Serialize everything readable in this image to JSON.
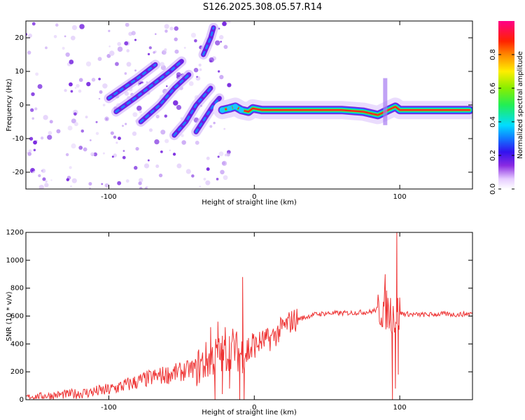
{
  "title": "S126.2025.308.05.57.R14",
  "colors": {
    "snr_line": "#ee3333",
    "axis": "#000000",
    "background": "#ffffff"
  },
  "chart_data": [
    {
      "type": "heatmap",
      "name": "spectrogram",
      "xlabel": "Height of straight line (km)",
      "ylabel": "Frequency (Hz)",
      "xlim": [
        -157,
        150
      ],
      "ylim": [
        -25,
        25
      ],
      "x_ticks": [
        -100,
        0,
        100
      ],
      "x_tick_labels": [
        "-100",
        "0",
        "100"
      ],
      "y_ticks": [
        20,
        10,
        0,
        -10,
        -20
      ],
      "y_tick_labels": [
        "20",
        "10",
        "0",
        "-10",
        "-20"
      ],
      "colorbar": {
        "label": "Normalized spectral amplitude",
        "range": [
          0,
          1
        ],
        "ticks": [
          0.0,
          0.2,
          0.4,
          0.6,
          0.8
        ],
        "tick_labels": [
          "0.0",
          "0.2",
          "0.4",
          "0.6",
          "0.8"
        ]
      },
      "features": [
        {
          "name": "carrier",
          "kind": "track",
          "points": [
            [
              -22,
              -1.5
            ],
            [
              -17,
              -1
            ],
            [
              -13,
              -0.5
            ],
            [
              -9,
              -1.5
            ],
            [
              -4,
              -2
            ],
            [
              -1,
              -1
            ],
            [
              5,
              -1.5
            ],
            [
              20,
              -1.5
            ],
            [
              60,
              -1.5
            ],
            [
              75,
              -2
            ],
            [
              85,
              -3
            ],
            [
              92,
              -1.5
            ],
            [
              97,
              -0.5
            ],
            [
              100,
              -1.5
            ],
            [
              148,
              -1.5
            ]
          ],
          "amplitude": 0.95
        },
        {
          "name": "streak-1",
          "kind": "track",
          "points": [
            [
              -100,
              2
            ],
            [
              -90,
              5
            ],
            [
              -80,
              8
            ],
            [
              -68,
              12
            ]
          ],
          "amplitude": 0.35
        },
        {
          "name": "streak-2",
          "kind": "track",
          "points": [
            [
              -95,
              -2
            ],
            [
              -82,
              2
            ],
            [
              -70,
              6
            ],
            [
              -58,
              10
            ],
            [
              -50,
              13
            ]
          ],
          "amplitude": 0.3
        },
        {
          "name": "streak-3",
          "kind": "track",
          "points": [
            [
              -78,
              -5
            ],
            [
              -65,
              0
            ],
            [
              -55,
              5
            ],
            [
              -45,
              9
            ]
          ],
          "amplitude": 0.28
        },
        {
          "name": "streak-4",
          "kind": "track",
          "points": [
            [
              -55,
              -9
            ],
            [
              -47,
              -5
            ],
            [
              -40,
              0
            ],
            [
              -30,
              5
            ]
          ],
          "amplitude": 0.3
        },
        {
          "name": "streak-5",
          "kind": "track",
          "points": [
            [
              -35,
              15
            ],
            [
              -30,
              20
            ],
            [
              -28,
              23
            ]
          ],
          "amplitude": 0.3
        },
        {
          "name": "streak-6",
          "kind": "track",
          "points": [
            [
              -40,
              -8
            ],
            [
              -34,
              -4
            ],
            [
              -28,
              0
            ],
            [
              -24,
              2
            ]
          ],
          "amplitude": 0.25
        }
      ]
    },
    {
      "type": "line",
      "name": "snr",
      "xlabel": "Height of straight line (km)",
      "ylabel": "SNR (10 * v/v)",
      "xlim": [
        -157,
        150
      ],
      "ylim": [
        0,
        1200
      ],
      "x_ticks": [
        -100,
        0,
        100
      ],
      "x_tick_labels": [
        "-100",
        "0",
        "100"
      ],
      "y_ticks": [
        0,
        200,
        400,
        600,
        800,
        1000,
        1200
      ],
      "y_tick_labels": [
        "0",
        "200",
        "400",
        "600",
        "800",
        "1000",
        "1200"
      ],
      "series": [
        {
          "name": "SNR",
          "x": [
            -157,
            -140,
            -120,
            -100,
            -90,
            -80,
            -70,
            -60,
            -50,
            -40,
            -35,
            -30,
            -25,
            -20,
            -15,
            -10,
            -5,
            0,
            5,
            10,
            15,
            20,
            25,
            30,
            35,
            40,
            50,
            60,
            70,
            80,
            85,
            90,
            92,
            95,
            97,
            98,
            100,
            105,
            110,
            120,
            130,
            140,
            150
          ],
          "values": [
            20,
            30,
            45,
            70,
            100,
            130,
            160,
            180,
            200,
            230,
            260,
            300,
            320,
            330,
            380,
            330,
            350,
            380,
            420,
            430,
            470,
            520,
            560,
            580,
            590,
            610,
            620,
            620,
            625,
            630,
            650,
            660,
            640,
            620,
            600,
            610,
            620,
            615,
            610,
            610,
            615,
            610,
            620
          ],
          "spikes": [
            {
              "x": -30,
              "y": 520
            },
            {
              "x": -27,
              "y": 0
            },
            {
              "x": -25,
              "y": 560
            },
            {
              "x": -22,
              "y": 40
            },
            {
              "x": -20,
              "y": 520
            },
            {
              "x": -17,
              "y": 80
            },
            {
              "x": -10,
              "y": 0
            },
            {
              "x": -8,
              "y": 880
            },
            {
              "x": -7,
              "y": 0
            },
            {
              "x": 90,
              "y": 900
            },
            {
              "x": 95,
              "y": 0
            },
            {
              "x": 97,
              "y": 80
            },
            {
              "x": 98,
              "y": 1200
            },
            {
              "x": 99,
              "y": 180
            }
          ]
        }
      ]
    }
  ]
}
